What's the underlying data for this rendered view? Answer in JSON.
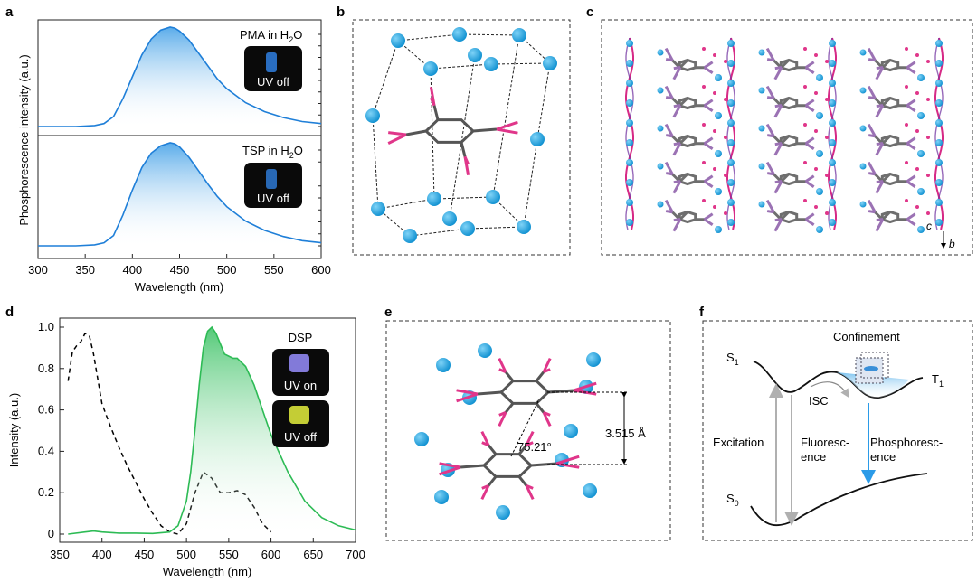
{
  "panels": {
    "a": {
      "label": "a",
      "xlabel": "Wavelength (nm)",
      "ylabel": "Phosphorescence intensity (a.u.)",
      "xticks": [
        "300",
        "350",
        "400",
        "450",
        "500",
        "550",
        "600"
      ],
      "top": {
        "name": "PMA in H",
        "sub": "2",
        "tail": "O",
        "inset": "UV off"
      },
      "bottom": {
        "name": "TSP in H",
        "sub": "2",
        "tail": "O",
        "inset": "UV off"
      }
    },
    "b": {
      "label": "b"
    },
    "c": {
      "label": "c",
      "axis_c": "c",
      "axis_b": "b"
    },
    "d": {
      "label": "d",
      "xlabel": "Wavelength (nm)",
      "ylabel": "Intensity (a.u.)",
      "xticks": [
        "350",
        "400",
        "450",
        "500",
        "550",
        "600",
        "650",
        "700"
      ],
      "yticks": [
        "0",
        "0.2",
        "0.4",
        "0.6",
        "0.8",
        "1.0"
      ],
      "legend": "DSP",
      "inset_on": "UV on",
      "inset_off": "UV off"
    },
    "e": {
      "label": "e",
      "distance": "3.515 Å",
      "angle": "75.21°"
    },
    "f": {
      "label": "f",
      "s1": "S",
      "s1_sub": "1",
      "t1": "T",
      "t1_sub": "1",
      "s0": "S",
      "s0_sub": "0",
      "confinement": "Confinement",
      "isc": "ISC",
      "excitation": "Excitation",
      "fluor_1": "Fluoresc-",
      "fluor_2": "ence",
      "phos_1": "Phosphoresc-",
      "phos_2": "ence"
    }
  },
  "chart_data": [
    {
      "panel": "a-top",
      "type": "area",
      "xlabel": "Wavelength (nm)",
      "ylabel": "Phosphorescence intensity (a.u.)",
      "xlim": [
        300,
        600
      ],
      "ylim": [
        0,
        1
      ],
      "color": "#1f7fd8",
      "series": [
        {
          "name": "PMA in H2O",
          "x": [
            300,
            340,
            360,
            370,
            380,
            390,
            400,
            410,
            420,
            430,
            440,
            445,
            450,
            460,
            470,
            480,
            490,
            500,
            520,
            540,
            560,
            580,
            600
          ],
          "y": [
            0.0,
            0.0,
            0.01,
            0.03,
            0.1,
            0.28,
            0.5,
            0.72,
            0.88,
            0.97,
            1.0,
            0.99,
            0.96,
            0.87,
            0.74,
            0.61,
            0.48,
            0.38,
            0.24,
            0.15,
            0.09,
            0.05,
            0.03
          ]
        }
      ]
    },
    {
      "panel": "a-bottom",
      "type": "area",
      "xlabel": "Wavelength (nm)",
      "ylabel": "Phosphorescence intensity (a.u.)",
      "xlim": [
        300,
        600
      ],
      "ylim": [
        0,
        1
      ],
      "color": "#1f7fd8",
      "series": [
        {
          "name": "TSP in H2O",
          "x": [
            300,
            340,
            360,
            370,
            380,
            390,
            400,
            410,
            420,
            430,
            440,
            445,
            450,
            460,
            470,
            480,
            490,
            500,
            520,
            540,
            560,
            580,
            600
          ],
          "y": [
            0.0,
            0.0,
            0.01,
            0.03,
            0.1,
            0.3,
            0.54,
            0.76,
            0.9,
            0.97,
            1.0,
            0.99,
            0.96,
            0.86,
            0.73,
            0.6,
            0.48,
            0.38,
            0.24,
            0.15,
            0.09,
            0.05,
            0.03
          ]
        }
      ]
    },
    {
      "panel": "d",
      "type": "line",
      "xlabel": "Wavelength (nm)",
      "ylabel": "Intensity (a.u.)",
      "xlim": [
        350,
        700
      ],
      "ylim": [
        0,
        1.0
      ],
      "series": [
        {
          "name": "",
          "style": "dashed",
          "color": "#000000",
          "x": [
            360,
            365,
            370,
            375,
            380,
            385,
            390,
            400,
            410,
            420,
            430,
            440,
            450,
            460,
            470,
            480,
            490,
            500,
            510,
            520,
            530,
            540,
            550,
            560,
            570,
            580,
            590,
            600
          ],
          "y": [
            0.74,
            0.88,
            0.91,
            0.93,
            0.97,
            0.96,
            0.87,
            0.63,
            0.52,
            0.42,
            0.33,
            0.25,
            0.17,
            0.1,
            0.04,
            0.01,
            0.0,
            0.05,
            0.2,
            0.3,
            0.27,
            0.2,
            0.2,
            0.21,
            0.19,
            0.13,
            0.05,
            0.01
          ]
        },
        {
          "name": "",
          "style": "solid",
          "color": "#2dbb55",
          "x": [
            360,
            380,
            390,
            400,
            420,
            440,
            460,
            480,
            490,
            500,
            505,
            510,
            515,
            520,
            525,
            530,
            535,
            540,
            545,
            550,
            555,
            560,
            570,
            580,
            590,
            600,
            620,
            640,
            660,
            680,
            700
          ],
          "y": [
            0.0,
            0.01,
            0.015,
            0.01,
            0.005,
            0.005,
            0.003,
            0.01,
            0.04,
            0.16,
            0.3,
            0.5,
            0.72,
            0.9,
            0.98,
            1.0,
            0.97,
            0.92,
            0.87,
            0.86,
            0.85,
            0.85,
            0.81,
            0.72,
            0.6,
            0.48,
            0.3,
            0.16,
            0.08,
            0.04,
            0.02
          ]
        }
      ]
    }
  ]
}
